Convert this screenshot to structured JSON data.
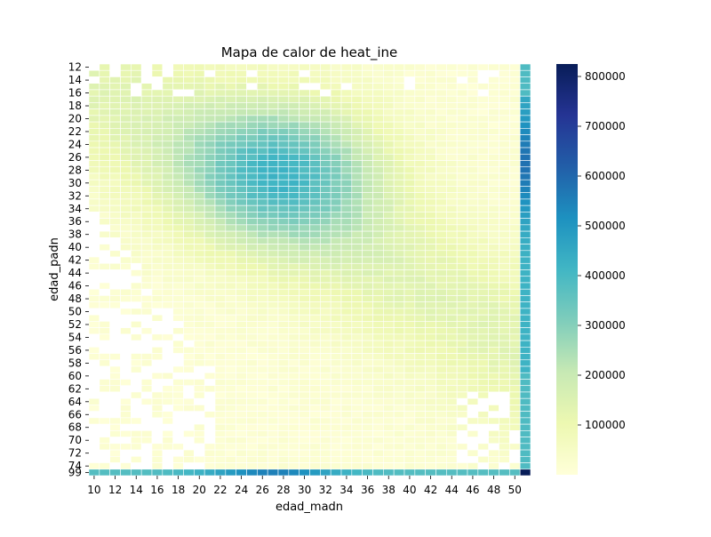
{
  "chart_data": {
    "type": "heatmap",
    "title": "Mapa de calor de heat_ine",
    "xlabel": "edad_madn",
    "ylabel": "edad_padn",
    "x_tick_labels": [
      "10",
      "12",
      "14",
      "16",
      "18",
      "20",
      "22",
      "24",
      "26",
      "28",
      "30",
      "32",
      "34",
      "36",
      "38",
      "40",
      "42",
      "44",
      "46",
      "48",
      "50"
    ],
    "y_tick_labels": [
      "12",
      "14",
      "16",
      "18",
      "20",
      "22",
      "24",
      "26",
      "28",
      "30",
      "32",
      "34",
      "36",
      "38",
      "40",
      "42",
      "44",
      "46",
      "48",
      "50",
      "52",
      "54",
      "56",
      "58",
      "60",
      "62",
      "64",
      "66",
      "68",
      "70",
      "72",
      "74",
      "99"
    ],
    "colorbar": {
      "ticks": [
        100000,
        200000,
        300000,
        400000,
        500000,
        600000,
        700000,
        800000
      ],
      "tick_labels": [
        "100000",
        "200000",
        "300000",
        "400000",
        "500000",
        "600000",
        "700000",
        "800000"
      ],
      "min": 0,
      "max": 825000,
      "colormap": "YlGnBu"
    },
    "note_on_values": "Cell values estimated from colour; grid spans edad_madn 10-50 (plus a total column) and edad_padn 12-74 (plus 99 total row); blank cells are missing.",
    "grid_on": true,
    "missing_color": "#ffffff",
    "cell_edge_color": "#ffffff"
  }
}
